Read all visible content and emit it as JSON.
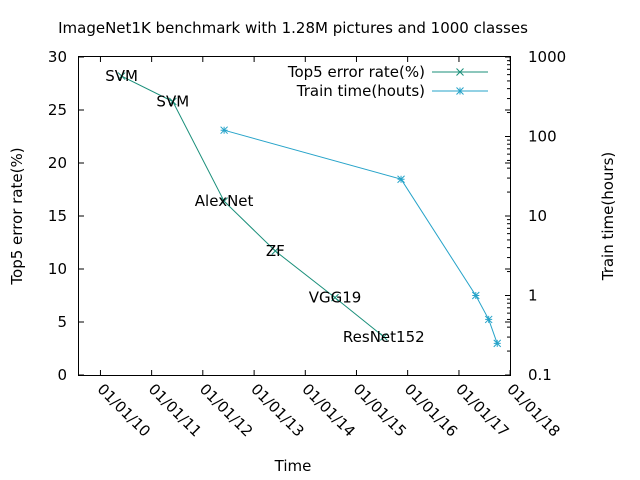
{
  "chart_data": {
    "type": "line",
    "title": "ImageNet1K benchmark with 1.28M pictures and 1000 classes",
    "xlabel": "Time",
    "ylabel": "Top5 error rate(%)",
    "y2label": "Train time(hours)",
    "x_ticks": [
      "01/01/10",
      "01/01/11",
      "01/01/12",
      "01/01/13",
      "01/01/14",
      "01/01/15",
      "01/01/16",
      "01/01/17",
      "01/01/18"
    ],
    "y_ticks": [
      "0",
      "5",
      "10",
      "15",
      "20",
      "25",
      "30"
    ],
    "y2_ticks": [
      "0.1",
      "1",
      "10",
      "100",
      "1000"
    ],
    "xlim": [
      "2009-08-01",
      "2017-12-31"
    ],
    "ylim": [
      0,
      30
    ],
    "y2lim": [
      0.1,
      1000
    ],
    "y2_scale": "log",
    "grid": false,
    "legend_position": "top-right",
    "series": [
      {
        "name": "Top5 error rate(%)",
        "axis": "left",
        "color": "#1a8f7a",
        "marker": "x",
        "points": [
          {
            "x": "2010-06-01",
            "y": 28.2,
            "label": "SVM"
          },
          {
            "x": "2011-06-01",
            "y": 25.8,
            "label": "SVM"
          },
          {
            "x": "2012-06-01",
            "y": 16.4,
            "label": "AlexNet"
          },
          {
            "x": "2013-06-01",
            "y": 11.7,
            "label": "ZF"
          },
          {
            "x": "2014-08-01",
            "y": 7.3,
            "label": "VGG19"
          },
          {
            "x": "2015-07-15",
            "y": 3.6,
            "label": "ResNet152"
          }
        ]
      },
      {
        "name": "Train time(houts)",
        "axis": "right",
        "color": "#26a3c9",
        "marker": "*",
        "points": [
          {
            "x": "2012-06-01",
            "y": 120
          },
          {
            "x": "2015-11-15",
            "y": 29
          },
          {
            "x": "2017-05-01",
            "y": 1
          },
          {
            "x": "2017-08-01",
            "y": 0.5
          },
          {
            "x": "2017-10-01",
            "y": 0.25
          }
        ]
      }
    ]
  }
}
